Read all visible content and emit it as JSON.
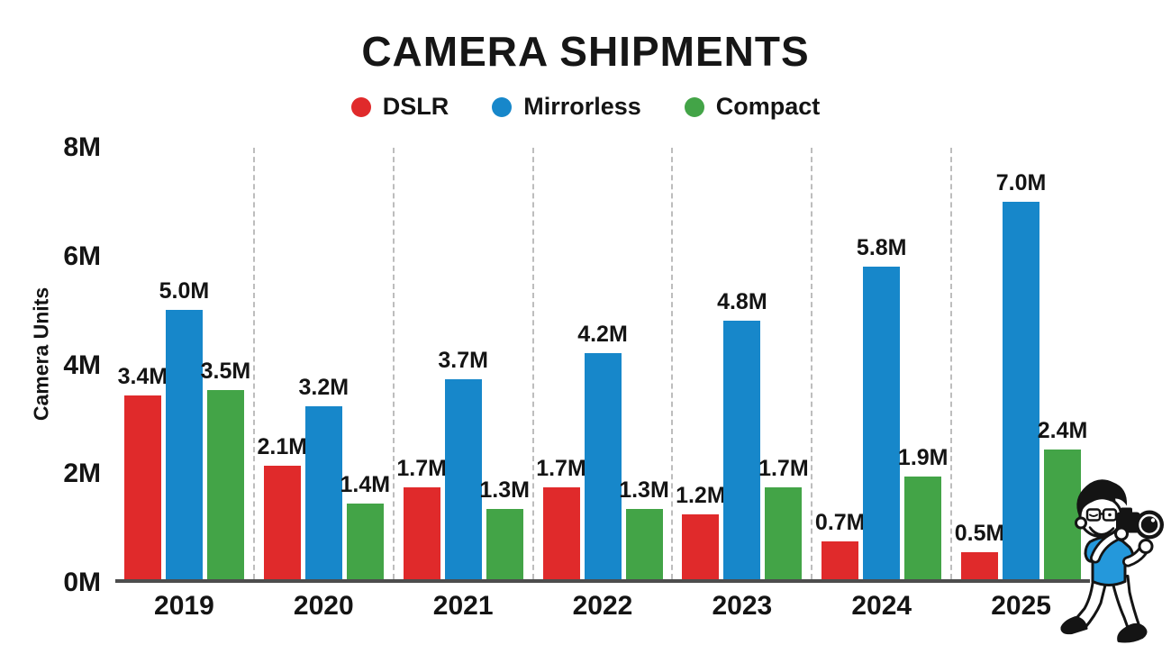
{
  "chart_data": {
    "type": "bar",
    "title": "CAMERA SHIPMENTS",
    "ylabel": "Camera Units",
    "xlabel": "",
    "categories": [
      "2019",
      "2020",
      "2021",
      "2022",
      "2023",
      "2024",
      "2025"
    ],
    "series": [
      {
        "name": "DSLR",
        "color": "#e02a2b",
        "values": [
          3.4,
          2.1,
          1.7,
          1.7,
          1.2,
          0.7,
          0.5
        ],
        "labels": [
          "3.4M",
          "2.1M",
          "1.7M",
          "1.7M",
          "1.2M",
          "0.7M",
          "0.5M"
        ]
      },
      {
        "name": "Mirrorless",
        "color": "#1787ca",
        "values": [
          5.0,
          3.2,
          3.7,
          4.2,
          4.8,
          5.8,
          7.0
        ],
        "labels": [
          "5.0M",
          "3.2M",
          "3.7M",
          "4.2M",
          "4.8M",
          "5.8M",
          "7.0M"
        ]
      },
      {
        "name": "Compact",
        "color": "#43a447",
        "values": [
          3.5,
          1.4,
          1.3,
          1.3,
          1.7,
          1.9,
          2.4
        ],
        "labels": [
          "3.5M",
          "1.4M",
          "1.3M",
          "1.3M",
          "1.7M",
          "1.9M",
          "2.4M"
        ]
      }
    ],
    "ylim": [
      0,
      8
    ],
    "yticks": [
      {
        "label": "0M",
        "value": 0
      },
      {
        "label": "2M",
        "value": 2
      },
      {
        "label": "4M",
        "value": 4
      },
      {
        "label": "6M",
        "value": 6
      },
      {
        "label": "8M",
        "value": 8
      }
    ],
    "value_suffix": "M",
    "grid": "vertical-dashed-separators-between-year-groups",
    "legend_position": "top-center",
    "axis_color": "#4d4d4d",
    "separator_color": "#bdbdbd",
    "text_color": "#141414"
  },
  "decoration": {
    "cartoon": "photographer holding DSLR camera, blue t-shirt, bottom-right corner"
  }
}
